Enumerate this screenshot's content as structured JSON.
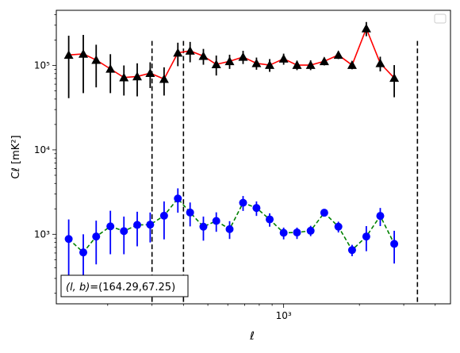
{
  "chart_data": {
    "type": "scatter",
    "xlabel": "ℓ",
    "ylabel": "Cℓ  [mK²]",
    "xscale": "log",
    "yscale": "log",
    "xlim": [
      125,
      4600
    ],
    "ylim": [
      150,
      450000
    ],
    "x_tick_labels": [
      {
        "value": 1000,
        "label": "10³"
      }
    ],
    "y_tick_labels": [
      {
        "value": 1000,
        "label": "10³"
      },
      {
        "value": 10000,
        "label": "10⁴"
      },
      {
        "value": 100000,
        "label": "10⁵"
      }
    ],
    "legend": {
      "placement": "top-right",
      "entries": []
    },
    "annotation": {
      "prefix": "(l, b)",
      "value": "=(164.29,67.25)",
      "placement": "bottom-left"
    },
    "vertical_lines_x": [
      300,
      400,
      3400
    ],
    "series": [
      {
        "color": "#000000",
        "line_color": "#ff0000",
        "line_style": "solid",
        "marker": "triangle",
        "points": [
          {
            "x": 140,
            "y": 133000,
            "lo": 41000,
            "hi": 225000
          },
          {
            "x": 160,
            "y": 137000,
            "lo": 47000,
            "hi": 230000
          },
          {
            "x": 180,
            "y": 116000,
            "lo": 55000,
            "hi": 176000
          },
          {
            "x": 205,
            "y": 91000,
            "lo": 47000,
            "hi": 136000
          },
          {
            "x": 232,
            "y": 72000,
            "lo": 44000,
            "hi": 100000
          },
          {
            "x": 262,
            "y": 74000,
            "lo": 43000,
            "hi": 106000
          },
          {
            "x": 295,
            "y": 81000,
            "lo": 54000,
            "hi": 109000
          },
          {
            "x": 335,
            "y": 69000,
            "lo": 44000,
            "hi": 95000
          },
          {
            "x": 380,
            "y": 141000,
            "lo": 98000,
            "hi": 186000
          },
          {
            "x": 425,
            "y": 149000,
            "lo": 109000,
            "hi": 190000
          },
          {
            "x": 480,
            "y": 129000,
            "lo": 102000,
            "hi": 157000
          },
          {
            "x": 540,
            "y": 103000,
            "lo": 76000,
            "hi": 131000
          },
          {
            "x": 610,
            "y": 112000,
            "lo": 91000,
            "hi": 134000
          },
          {
            "x": 690,
            "y": 126000,
            "lo": 104000,
            "hi": 149000
          },
          {
            "x": 780,
            "y": 106000,
            "lo": 89000,
            "hi": 124000
          },
          {
            "x": 880,
            "y": 101000,
            "lo": 84000,
            "hi": 119000
          },
          {
            "x": 1000,
            "y": 120000,
            "lo": 102000,
            "hi": 138000
          },
          {
            "x": 1130,
            "y": 101000,
            "lo": 88000,
            "hi": 114000
          },
          {
            "x": 1280,
            "y": 101000,
            "lo": 88000,
            "hi": 115000
          },
          {
            "x": 1450,
            "y": 112000,
            "lo": 100000,
            "hi": 124000
          },
          {
            "x": 1650,
            "y": 133000,
            "lo": 119000,
            "hi": 147000
          },
          {
            "x": 1870,
            "y": 101000,
            "lo": 90000,
            "hi": 112000
          },
          {
            "x": 2130,
            "y": 274000,
            "lo": 222000,
            "hi": 327000
          },
          {
            "x": 2420,
            "y": 106000,
            "lo": 85000,
            "hi": 127000
          },
          {
            "x": 2750,
            "y": 71000,
            "lo": 42000,
            "hi": 101000
          }
        ]
      },
      {
        "color": "#0000ff",
        "line_color": "#008000",
        "line_style": "dashed",
        "marker": "circle",
        "points": [
          {
            "x": 140,
            "y": 880,
            "lo": 300,
            "hi": 1500
          },
          {
            "x": 160,
            "y": 610,
            "lo": 230,
            "hi": 1000
          },
          {
            "x": 180,
            "y": 940,
            "lo": 440,
            "hi": 1450
          },
          {
            "x": 205,
            "y": 1240,
            "lo": 580,
            "hi": 1900
          },
          {
            "x": 232,
            "y": 1090,
            "lo": 580,
            "hi": 1620
          },
          {
            "x": 262,
            "y": 1290,
            "lo": 720,
            "hi": 1850
          },
          {
            "x": 295,
            "y": 1300,
            "lo": 800,
            "hi": 1810
          },
          {
            "x": 335,
            "y": 1660,
            "lo": 870,
            "hi": 2450
          },
          {
            "x": 380,
            "y": 2650,
            "lo": 1800,
            "hi": 3500
          },
          {
            "x": 425,
            "y": 1810,
            "lo": 1240,
            "hi": 2380
          },
          {
            "x": 480,
            "y": 1230,
            "lo": 840,
            "hi": 1620
          },
          {
            "x": 540,
            "y": 1440,
            "lo": 1070,
            "hi": 1820
          },
          {
            "x": 610,
            "y": 1150,
            "lo": 880,
            "hi": 1430
          },
          {
            "x": 690,
            "y": 2360,
            "lo": 1890,
            "hi": 2840
          },
          {
            "x": 780,
            "y": 2050,
            "lo": 1650,
            "hi": 2450
          },
          {
            "x": 880,
            "y": 1500,
            "lo": 1230,
            "hi": 1770
          },
          {
            "x": 1000,
            "y": 1040,
            "lo": 870,
            "hi": 1200
          },
          {
            "x": 1130,
            "y": 1050,
            "lo": 880,
            "hi": 1200
          },
          {
            "x": 1280,
            "y": 1100,
            "lo": 950,
            "hi": 1260
          },
          {
            "x": 1450,
            "y": 1800,
            "lo": 1620,
            "hi": 1980
          },
          {
            "x": 1650,
            "y": 1230,
            "lo": 1050,
            "hi": 1410
          },
          {
            "x": 1870,
            "y": 650,
            "lo": 550,
            "hi": 750
          },
          {
            "x": 2130,
            "y": 940,
            "lo": 630,
            "hi": 1250
          },
          {
            "x": 2420,
            "y": 1650,
            "lo": 1250,
            "hi": 2050
          },
          {
            "x": 2750,
            "y": 770,
            "lo": 450,
            "hi": 1100
          }
        ]
      }
    ]
  }
}
